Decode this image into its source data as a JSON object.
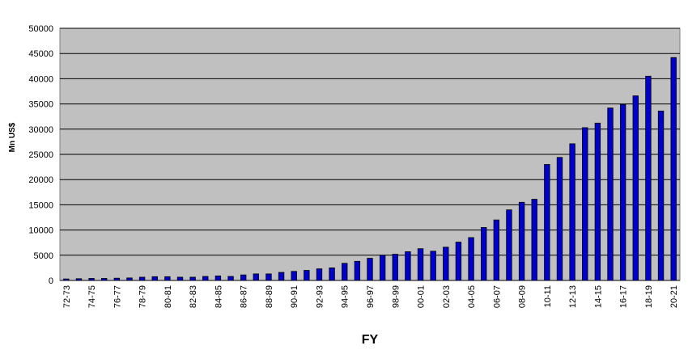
{
  "chart_data": {
    "type": "bar",
    "title": "",
    "xlabel": "FY",
    "ylabel": "Mn US$",
    "ylim": [
      0,
      50000
    ],
    "yticks": [
      0,
      5000,
      10000,
      15000,
      20000,
      25000,
      30000,
      35000,
      40000,
      45000,
      50000
    ],
    "grid": true,
    "legend": "none",
    "categories": [
      "72-73",
      "73-74",
      "74-75",
      "75-76",
      "76-77",
      "77-78",
      "78-79",
      "79-80",
      "80-81",
      "81-82",
      "82-83",
      "83-84",
      "84-85",
      "85-86",
      "86-87",
      "87-88",
      "88-89",
      "89-90",
      "90-91",
      "91-92",
      "92-93",
      "93-94",
      "94-95",
      "95-96",
      "96-97",
      "97-98",
      "98-99",
      "99-00",
      "00-01",
      "01-02",
      "02-03",
      "03-04",
      "04-05",
      "05-06",
      "06-07",
      "07-08",
      "08-09",
      "09-10",
      "10-11",
      "11-12",
      "12-13",
      "13-14",
      "14-15",
      "15-16",
      "16-17",
      "17-18",
      "18-19",
      "19-20",
      "20-21"
    ],
    "category_tick_labels": [
      "72-73",
      "",
      "74-75",
      "",
      "76-77",
      "",
      "78-79",
      "",
      "80-81",
      "",
      "82-83",
      "",
      "84-85",
      "",
      "86-87",
      "",
      "88-89",
      "",
      "90-91",
      "",
      "92-93",
      "",
      "94-95",
      "",
      "96-97",
      "",
      "98-99",
      "",
      "00-01",
      "",
      "02-03",
      "",
      "04-05",
      "",
      "06-07",
      "",
      "08-09",
      "",
      "10-11",
      "",
      "12-13",
      "",
      "14-15",
      "",
      "16-17",
      "",
      "18-19",
      "",
      "20-21"
    ],
    "values": [
      300,
      350,
      400,
      400,
      450,
      500,
      650,
      750,
      750,
      650,
      650,
      800,
      900,
      800,
      1100,
      1300,
      1300,
      1600,
      1800,
      2000,
      2300,
      2500,
      3400,
      3800,
      4400,
      5000,
      5200,
      5700,
      6300,
      5800,
      6600,
      7600,
      8500,
      10500,
      12000,
      14000,
      15500,
      16100,
      23000,
      24400,
      27100,
      30300,
      31200,
      34200,
      34900,
      36600,
      40500,
      33600,
      44200
    ],
    "colors": {
      "plot_background": "#c0c0c0",
      "bar_fill": "#0000cc",
      "bar_edge": "#000000",
      "gridline": "#000000"
    }
  }
}
